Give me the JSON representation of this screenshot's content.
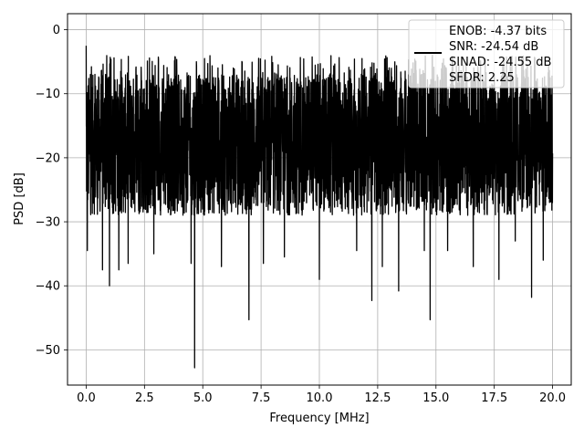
{
  "chart_data": {
    "type": "line",
    "xlabel": "Frequency [MHz]",
    "ylabel": "PSD [dB]",
    "xlim": [
      -0.8,
      20.8
    ],
    "ylim": [
      -55.5,
      2.5
    ],
    "xticks": [
      0.0,
      2.5,
      5.0,
      7.5,
      10.0,
      12.5,
      15.0,
      17.5,
      20.0
    ],
    "xtick_labels": [
      "0.0",
      "2.5",
      "5.0",
      "7.5",
      "10.0",
      "12.5",
      "15.0",
      "17.5",
      "20.0"
    ],
    "yticks": [
      0,
      -10,
      -20,
      -30,
      -40,
      -50
    ],
    "ytick_labels": [
      "0",
      "−10",
      "−20",
      "−30",
      "−40",
      "−50"
    ],
    "grid": true,
    "legend": {
      "placement": "top-right",
      "entries": [
        "ENOB: -4.37 bits",
        "SNR: -24.54 dB",
        "SINAD: -24.55 dB",
        "SFDR: 2.25"
      ]
    },
    "line_color": "#000000",
    "series": [
      {
        "x_range": [
          0.0,
          20.0
        ],
        "typical_band": [
          -28,
          -8
        ],
        "peak": {
          "x": 0.0,
          "y": -2.5
        },
        "dips": [
          {
            "x": 0.05,
            "y": -34.5
          },
          {
            "x": 0.7,
            "y": -37.5
          },
          {
            "x": 1.0,
            "y": -40.0
          },
          {
            "x": 1.4,
            "y": -37.5
          },
          {
            "x": 1.8,
            "y": -36.5
          },
          {
            "x": 2.9,
            "y": -35.0
          },
          {
            "x": 4.5,
            "y": -36.5
          },
          {
            "x": 4.65,
            "y": -52.8
          },
          {
            "x": 5.8,
            "y": -37.0
          },
          {
            "x": 6.98,
            "y": -45.3
          },
          {
            "x": 7.6,
            "y": -36.5
          },
          {
            "x": 8.5,
            "y": -35.5
          },
          {
            "x": 10.0,
            "y": -39.0
          },
          {
            "x": 11.6,
            "y": -34.5
          },
          {
            "x": 12.25,
            "y": -42.3
          },
          {
            "x": 12.7,
            "y": -37.0
          },
          {
            "x": 13.4,
            "y": -40.8
          },
          {
            "x": 14.5,
            "y": -34.5
          },
          {
            "x": 14.75,
            "y": -45.3
          },
          {
            "x": 15.5,
            "y": -34.5
          },
          {
            "x": 16.6,
            "y": -37.0
          },
          {
            "x": 17.7,
            "y": -39.0
          },
          {
            "x": 18.4,
            "y": -33.0
          },
          {
            "x": 19.1,
            "y": -41.8
          },
          {
            "x": 19.6,
            "y": -36.0
          }
        ]
      }
    ]
  }
}
